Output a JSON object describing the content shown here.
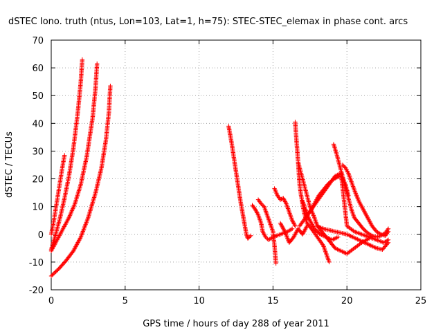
{
  "chart_data": {
    "type": "scatter",
    "title": "dSTEC Iono. truth (ntus, Lon=103, Lat=1, h=75): STEC-STEC_elemax in phase cont. arcs",
    "xlabel": "GPS time / hours of day 288 of year 2011",
    "ylabel": "dSTEC  / TECUs",
    "xlim": [
      0,
      25
    ],
    "ylim": [
      -20,
      70
    ],
    "xticks": [
      "0",
      "5",
      "10",
      "15",
      "20",
      "25"
    ],
    "yticks": [
      "-20",
      "-10",
      "0",
      "10",
      "20",
      "30",
      "40",
      "50",
      "60",
      "70"
    ],
    "grid": true,
    "marker": "plus",
    "color": "#ff0000",
    "series": [
      {
        "x": [
          0.0,
          0.15,
          0.3,
          0.45,
          0.6,
          0.75,
          0.9
        ],
        "y": [
          0.0,
          4,
          9,
          14,
          19,
          24,
          28.5
        ]
      },
      {
        "x": [
          0.0,
          0.3,
          0.6,
          0.9,
          1.2,
          1.5,
          1.8,
          2.0,
          2.1
        ],
        "y": [
          -5.5,
          0,
          6,
          13,
          21,
          31,
          44,
          55,
          63
        ]
      },
      {
        "x": [
          0.0,
          0.4,
          0.8,
          1.2,
          1.6,
          2.0,
          2.4,
          2.8,
          3.0,
          3.1
        ],
        "y": [
          -6,
          -2,
          2,
          6,
          11,
          18,
          28,
          42,
          53,
          61.5
        ]
      },
      {
        "x": [
          0.0,
          0.5,
          1.0,
          1.5,
          2.0,
          2.5,
          3.0,
          3.4,
          3.7,
          3.9,
          4.0
        ],
        "y": [
          -15,
          -12.5,
          -9.5,
          -6,
          -1,
          6,
          15,
          24,
          34,
          44,
          53.5
        ]
      },
      {
        "x": [
          12.0,
          12.2,
          12.4,
          12.6,
          12.8,
          13.0,
          13.1,
          13.2,
          13.3,
          13.5
        ],
        "y": [
          39,
          33,
          26,
          19,
          12,
          6,
          3,
          0,
          -1.5,
          -0.5
        ]
      },
      {
        "x": [
          13.6,
          13.8,
          14.0,
          14.2,
          14.3,
          14.5,
          14.7,
          15.0,
          15.5,
          16.0,
          16.3
        ],
        "y": [
          10.5,
          9,
          7,
          4,
          1,
          -1,
          -2,
          -1,
          0,
          1,
          2
        ]
      },
      {
        "x": [
          14.0,
          14.2,
          14.4,
          14.6,
          14.8,
          15.0,
          15.1,
          15.2
        ],
        "y": [
          12.5,
          11,
          10,
          7,
          4,
          1,
          -4,
          -10.5
        ]
      },
      {
        "x": [
          15.1,
          15.3,
          15.5,
          15.7,
          15.9,
          16.1,
          16.3,
          16.5
        ],
        "y": [
          16.5,
          14,
          12.5,
          13,
          11,
          8,
          5,
          3
        ]
      },
      {
        "x": [
          16.5,
          16.6,
          16.7,
          16.8,
          16.9,
          17.0,
          17.1,
          17.3,
          17.6,
          18.0,
          18.4,
          18.8
        ],
        "y": [
          40.5,
          33,
          26,
          18,
          14,
          11,
          8,
          4,
          2,
          -1,
          -4,
          -10
        ]
      },
      {
        "x": [
          16.7,
          16.9,
          17.1,
          17.3,
          17.5,
          17.8,
          18.0,
          18.3,
          18.6,
          18.9,
          19.2,
          19.6,
          20.0,
          20.5,
          21.0,
          21.5
        ],
        "y": [
          26,
          22,
          18,
          14,
          10,
          6,
          3,
          1,
          -1,
          -3,
          -5,
          -6,
          -7,
          -5,
          -3,
          -1.5
        ]
      },
      {
        "x": [
          16.8,
          17.2,
          17.6,
          18.0,
          18.4,
          18.8,
          19.2,
          19.6,
          20.0,
          20.5,
          21.0,
          21.5,
          22.0,
          22.5,
          22.8
        ],
        "y": [
          3,
          6,
          9,
          12,
          15,
          18,
          21,
          22,
          3,
          1,
          0,
          -1,
          -2,
          -3,
          -2
        ]
      },
      {
        "x": [
          17.5,
          17.8,
          18.1,
          18.4,
          18.7,
          19.0,
          19.3,
          19.6,
          19.9,
          20.1
        ],
        "y": [
          8,
          11,
          14,
          16,
          18,
          19.5,
          20.5,
          21,
          18,
          14
        ]
      },
      {
        "x": [
          18.0,
          18.4,
          18.8,
          19.2,
          19.6,
          20.0,
          20.4,
          20.8,
          21.2,
          21.6,
          22.0,
          22.4,
          22.8
        ],
        "y": [
          3,
          2,
          1.5,
          1,
          0.5,
          0,
          -1,
          -2,
          -3,
          -4,
          -5,
          -5.5,
          -3
        ]
      },
      {
        "x": [
          19.1,
          19.3,
          19.5,
          19.7,
          19.9,
          20.1,
          20.3,
          20.5,
          20.8,
          21.1,
          21.4,
          21.7,
          22.0,
          22.3,
          22.6,
          22.8
        ],
        "y": [
          32.5,
          29,
          25,
          21,
          17,
          13,
          9,
          6,
          4,
          2,
          0.5,
          -0.5,
          -1,
          -0.5,
          0.5,
          2
        ]
      },
      {
        "x": [
          19.7,
          19.9,
          20.1,
          20.3,
          20.5,
          20.8,
          21.1,
          21.4,
          21.7,
          22.0,
          22.3,
          22.6,
          22.8
        ],
        "y": [
          25,
          24,
          22,
          19,
          16,
          12,
          9,
          6,
          3,
          1,
          0,
          -0.5,
          1
        ]
      },
      {
        "x": [
          17.0,
          17.4,
          17.8,
          18.2,
          18.6,
          19.0,
          19.4
        ],
        "y": [
          12,
          6,
          2,
          0,
          -1,
          -2,
          -1
        ]
      },
      {
        "x": [
          15.5,
          15.8,
          16.1,
          16.4,
          16.7,
          17.0,
          17.3
        ],
        "y": [
          4,
          1,
          -3,
          -1,
          2,
          0,
          3
        ]
      }
    ]
  }
}
